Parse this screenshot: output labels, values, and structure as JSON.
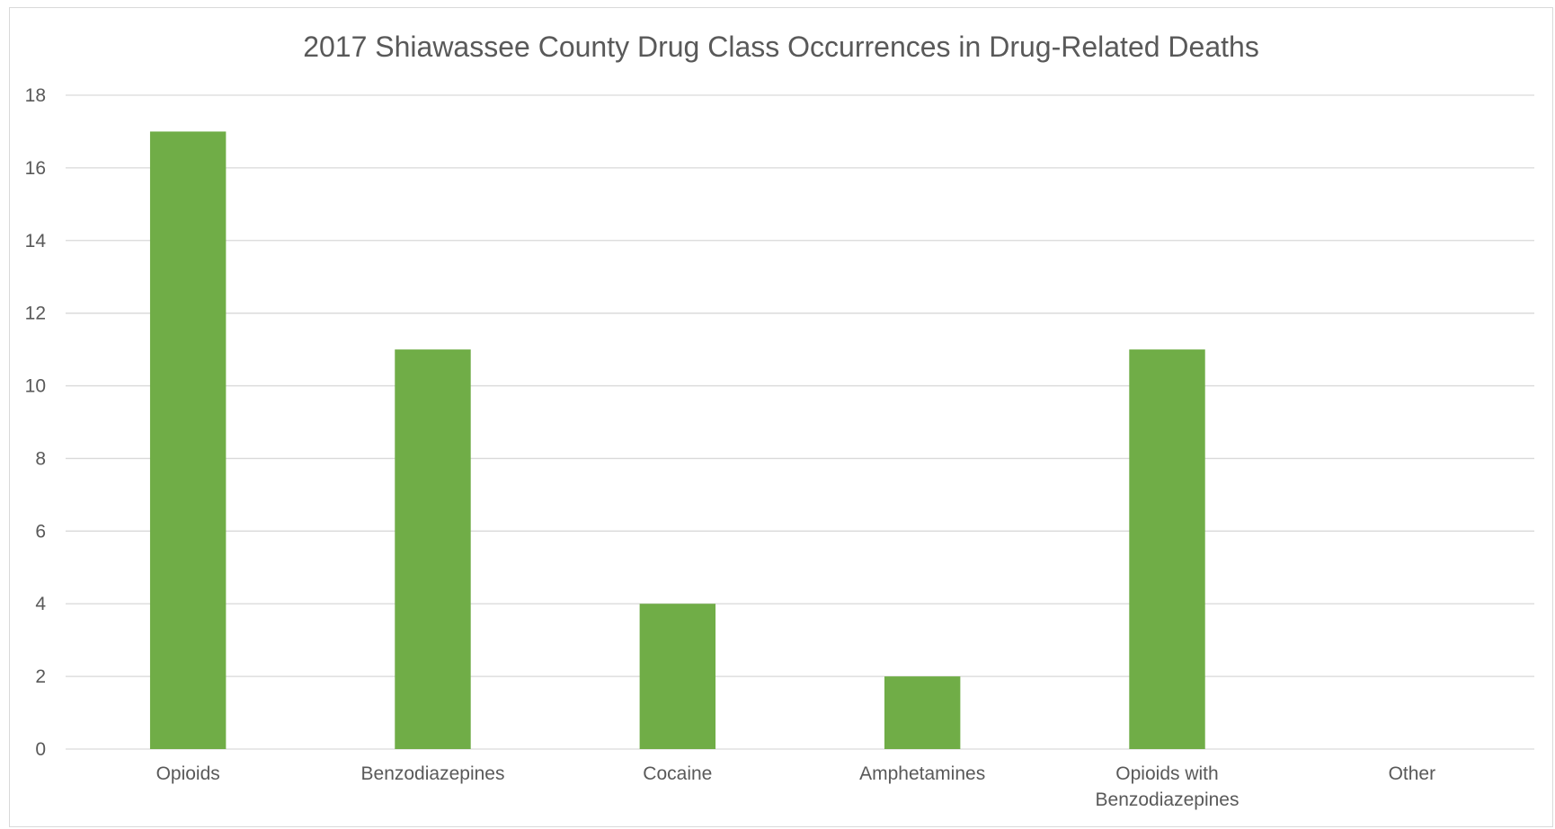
{
  "chart_data": {
    "type": "bar",
    "title": "2017 Shiawassee County Drug Class Occurrences in Drug-Related Deaths",
    "xlabel": "",
    "ylabel": "",
    "categories": [
      "Opioids",
      "Benzodiazepines",
      "Cocaine",
      "Amphetamines",
      "Opioids with Benzodiazepines",
      "Other"
    ],
    "category_lines": [
      [
        "Opioids"
      ],
      [
        "Benzodiazepines"
      ],
      [
        "Cocaine"
      ],
      [
        "Amphetamines"
      ],
      [
        "Opioids with",
        "Benzodiazepines"
      ],
      [
        "Other"
      ]
    ],
    "values": [
      17,
      11,
      4,
      2,
      11,
      0
    ],
    "ylim": [
      0,
      18
    ],
    "yticks": [
      0,
      2,
      4,
      6,
      8,
      10,
      12,
      14,
      16,
      18
    ],
    "grid": true,
    "legend": "none",
    "bar_color": "#70ad47",
    "gridline_color": "#d9d9d9",
    "text_color": "#595959"
  }
}
